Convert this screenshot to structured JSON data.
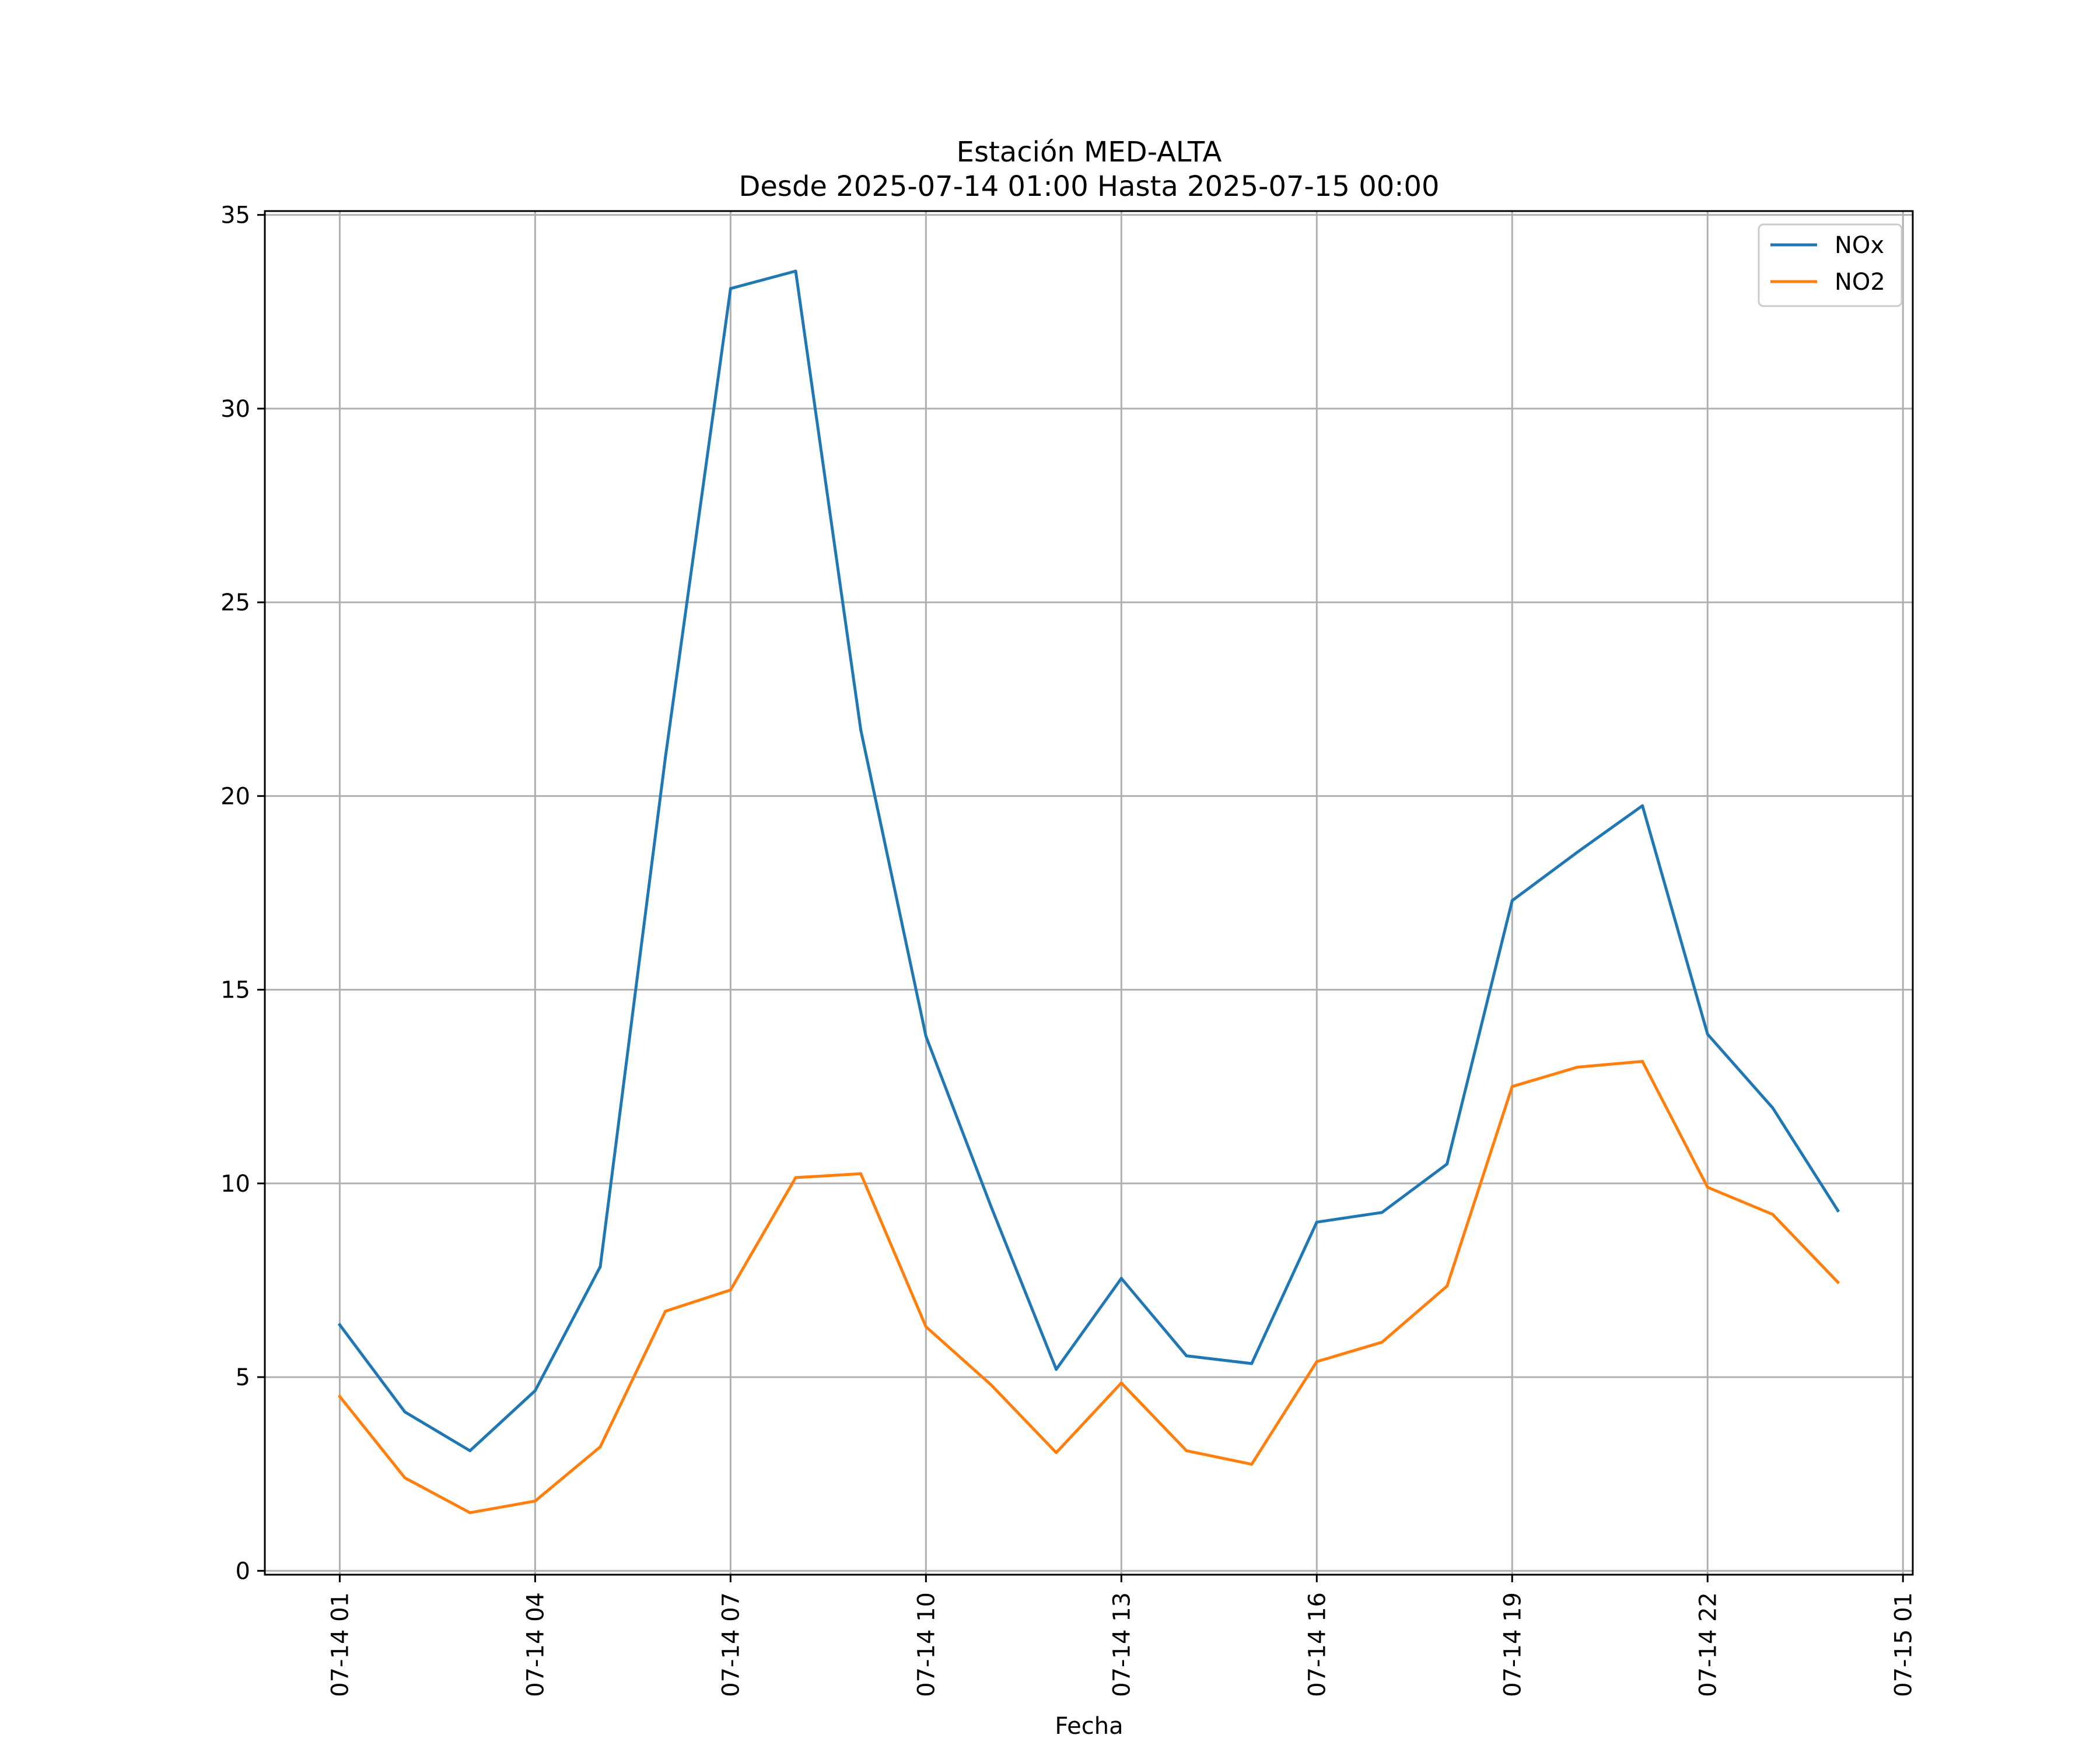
{
  "chart_data": {
    "type": "line",
    "title": "Estación MED-ALTA",
    "subtitle": "Desde 2025-07-14 01:00 Hasta 2025-07-15 00:00",
    "xlabel": "Fecha",
    "ylabel": "",
    "x": [
      "2025-07-14 01:00",
      "2025-07-14 02:00",
      "2025-07-14 03:00",
      "2025-07-14 04:00",
      "2025-07-14 05:00",
      "2025-07-14 06:00",
      "2025-07-14 07:00",
      "2025-07-14 08:00",
      "2025-07-14 09:00",
      "2025-07-14 10:00",
      "2025-07-14 11:00",
      "2025-07-14 12:00",
      "2025-07-14 13:00",
      "2025-07-14 14:00",
      "2025-07-14 15:00",
      "2025-07-14 16:00",
      "2025-07-14 17:00",
      "2025-07-14 18:00",
      "2025-07-14 19:00",
      "2025-07-14 20:00",
      "2025-07-14 21:00",
      "2025-07-14 22:00",
      "2025-07-14 23:00",
      "2025-07-15 00:00"
    ],
    "series": [
      {
        "name": "NOx",
        "color": "#1f77b4",
        "values": [
          6.35,
          4.1,
          3.1,
          4.65,
          7.85,
          21.0,
          33.1,
          33.55,
          21.7,
          13.8,
          9.4,
          5.2,
          7.55,
          5.55,
          5.35,
          9.0,
          9.25,
          10.5,
          17.3,
          18.55,
          19.75,
          13.85,
          11.95,
          9.3
        ]
      },
      {
        "name": "NO2",
        "color": "#ff7f0e",
        "values": [
          4.5,
          2.4,
          1.5,
          1.8,
          3.2,
          6.7,
          7.25,
          10.15,
          10.25,
          6.3,
          4.8,
          3.05,
          4.85,
          3.1,
          2.75,
          5.4,
          5.9,
          7.35,
          12.5,
          13.0,
          13.15,
          9.9,
          9.2,
          7.45
        ]
      }
    ],
    "ylim": [
      -0.1,
      35.1
    ],
    "xlim": [
      "2025-07-13 23:51",
      "2025-07-15 01:09"
    ],
    "yticks": [
      0,
      5,
      10,
      15,
      20,
      25,
      30,
      35
    ],
    "xticks": [
      "2025-07-14 01:00",
      "2025-07-14 04:00",
      "2025-07-14 07:00",
      "2025-07-14 10:00",
      "2025-07-14 13:00",
      "2025-07-14 16:00",
      "2025-07-14 19:00",
      "2025-07-14 22:00",
      "2025-07-15 01:00"
    ],
    "xtick_labels": [
      "07-14 01",
      "07-14 04",
      "07-14 07",
      "07-14 10",
      "07-14 13",
      "07-14 16",
      "07-14 19",
      "07-14 22",
      "07-15 01"
    ],
    "grid": true,
    "legend_position": "top-right"
  }
}
